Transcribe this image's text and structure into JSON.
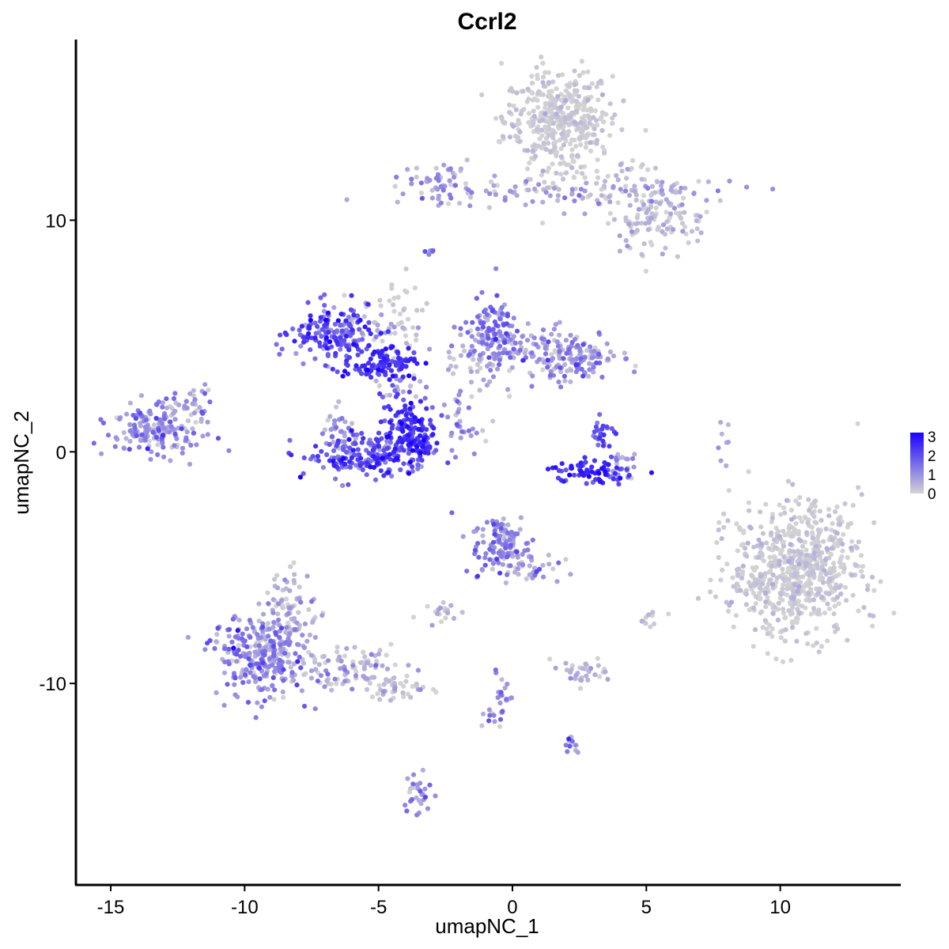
{
  "chart_data": {
    "type": "scatter",
    "title": "Ccrl2",
    "xlabel": "umapNC_1",
    "ylabel": "umapNC_2",
    "xlim": [
      -16.3,
      14.5
    ],
    "ylim": [
      -18.7,
      17.8
    ],
    "xticks": [
      -15,
      -10,
      -5,
      0,
      5,
      10
    ],
    "yticks": [
      -10,
      0,
      10
    ],
    "xtick_labels": [
      "-15",
      "-10",
      "-5",
      "0",
      "5",
      "10"
    ],
    "ytick_labels": [
      "-10",
      "0",
      "10"
    ],
    "color_scale": {
      "low_color": "#d3d3d3",
      "high_color": "#1a00ff",
      "min": 0,
      "max": 3.2,
      "legend_ticks": [
        "0",
        "1",
        "2",
        "3"
      ],
      "legend_placement": "right"
    },
    "grid": false,
    "clusters": [
      {
        "cx": 1.7,
        "cy": 14.3,
        "sx": 1.0,
        "sy": 1.1,
        "n": 420,
        "expr": 0.05,
        "expr_sd": 0.2
      },
      {
        "cx": 2.0,
        "cy": 11.3,
        "sx": 3.3,
        "sy": 0.35,
        "n": 110,
        "expr": 0.5,
        "expr_sd": 0.45
      },
      {
        "cx": -2.7,
        "cy": 11.6,
        "sx": 0.55,
        "sy": 0.45,
        "n": 45,
        "expr": 0.8,
        "expr_sd": 0.5
      },
      {
        "cx": 5.4,
        "cy": 10.0,
        "sx": 0.9,
        "sy": 0.7,
        "n": 110,
        "expr": 0.2,
        "expr_sd": 0.35
      },
      {
        "cx": 4.9,
        "cy": 11.5,
        "sx": 0.9,
        "sy": 0.6,
        "n": 40,
        "expr": 0.25,
        "expr_sd": 0.35
      },
      {
        "cx": -3.0,
        "cy": 8.5,
        "sx": 0.15,
        "sy": 0.15,
        "n": 5,
        "expr": 1.2,
        "expr_sd": 0.4
      },
      {
        "cx": -6.7,
        "cy": 5.0,
        "sx": 0.8,
        "sy": 0.6,
        "n": 160,
        "expr": 1.9,
        "expr_sd": 0.6
      },
      {
        "cx": -4.8,
        "cy": 3.8,
        "sx": 0.6,
        "sy": 0.35,
        "n": 110,
        "expr": 2.4,
        "expr_sd": 0.4
      },
      {
        "cx": -5.6,
        "cy": 5.5,
        "sx": 1.2,
        "sy": 0.45,
        "n": 50,
        "expr": 0.3,
        "expr_sd": 0.45
      },
      {
        "cx": -4.2,
        "cy": 6.2,
        "sx": 0.4,
        "sy": 1.0,
        "n": 25,
        "expr": 0.05,
        "expr_sd": 0.15
      },
      {
        "cx": -3.8,
        "cy": 0.9,
        "sx": 0.55,
        "sy": 0.75,
        "n": 150,
        "expr": 2.4,
        "expr_sd": 0.45
      },
      {
        "cx": -5.4,
        "cy": -0.2,
        "sx": 1.2,
        "sy": 0.45,
        "n": 190,
        "expr": 1.9,
        "expr_sd": 0.6
      },
      {
        "cx": -6.4,
        "cy": 0.9,
        "sx": 0.3,
        "sy": 0.45,
        "n": 35,
        "expr": 0.6,
        "expr_sd": 0.5
      },
      {
        "cx": -4.2,
        "cy": 2.6,
        "sx": 0.3,
        "sy": 0.6,
        "n": 20,
        "expr": 0.4,
        "expr_sd": 0.5
      },
      {
        "cx": -0.8,
        "cy": 5.4,
        "sx": 0.5,
        "sy": 0.7,
        "n": 90,
        "expr": 1.2,
        "expr_sd": 0.6
      },
      {
        "cx": 1.2,
        "cy": 4.3,
        "sx": 1.4,
        "sy": 0.5,
        "n": 170,
        "expr": 0.8,
        "expr_sd": 0.55
      },
      {
        "cx": 2.3,
        "cy": 4.0,
        "sx": 0.6,
        "sy": 0.5,
        "n": 60,
        "expr": 1.0,
        "expr_sd": 0.55
      },
      {
        "cx": -1.5,
        "cy": 3.5,
        "sx": 0.6,
        "sy": 0.8,
        "n": 40,
        "expr": 0.5,
        "expr_sd": 0.5
      },
      {
        "cx": -2.1,
        "cy": 1.8,
        "sx": 0.3,
        "sy": 0.6,
        "n": 12,
        "expr": 0.9,
        "expr_sd": 0.5
      },
      {
        "cx": -1.6,
        "cy": 1.0,
        "sx": 0.5,
        "sy": 0.4,
        "n": 15,
        "expr": 0.9,
        "expr_sd": 0.5
      },
      {
        "cx": 3.0,
        "cy": -0.9,
        "sx": 0.85,
        "sy": 0.25,
        "n": 70,
        "expr": 2.5,
        "expr_sd": 0.45
      },
      {
        "cx": 3.3,
        "cy": 0.6,
        "sx": 0.25,
        "sy": 0.45,
        "n": 25,
        "expr": 1.9,
        "expr_sd": 0.5
      },
      {
        "cx": 4.2,
        "cy": -0.5,
        "sx": 0.3,
        "sy": 0.35,
        "n": 20,
        "expr": 0.6,
        "expr_sd": 0.5
      },
      {
        "cx": 7.9,
        "cy": 0.2,
        "sx": 0.12,
        "sy": 0.5,
        "n": 8,
        "expr": 0.5,
        "expr_sd": 0.4
      },
      {
        "cx": -13.3,
        "cy": 1.0,
        "sx": 0.85,
        "sy": 0.55,
        "n": 180,
        "expr": 0.9,
        "expr_sd": 0.6
      },
      {
        "cx": -12.0,
        "cy": 1.9,
        "sx": 0.35,
        "sy": 0.6,
        "n": 25,
        "expr": 0.6,
        "expr_sd": 0.5
      },
      {
        "cx": 10.6,
        "cy": -5.0,
        "sx": 1.2,
        "sy": 1.45,
        "n": 650,
        "expr": 0.06,
        "expr_sd": 0.22
      },
      {
        "cx": 8.6,
        "cy": -5.8,
        "sx": 0.5,
        "sy": 0.35,
        "n": 20,
        "expr": 0.05,
        "expr_sd": 0.15
      },
      {
        "cx": -0.4,
        "cy": -4.0,
        "sx": 0.55,
        "sy": 0.65,
        "n": 120,
        "expr": 1.1,
        "expr_sd": 0.6
      },
      {
        "cx": 0.8,
        "cy": -5.0,
        "sx": 0.5,
        "sy": 0.35,
        "n": 35,
        "expr": 0.8,
        "expr_sd": 0.55
      },
      {
        "cx": -9.4,
        "cy": -8.8,
        "sx": 0.9,
        "sy": 0.9,
        "n": 300,
        "expr": 0.9,
        "expr_sd": 0.6
      },
      {
        "cx": -8.2,
        "cy": -6.7,
        "sx": 0.5,
        "sy": 0.8,
        "n": 80,
        "expr": 0.4,
        "expr_sd": 0.45
      },
      {
        "cx": -6.0,
        "cy": -9.4,
        "sx": 1.0,
        "sy": 0.45,
        "n": 90,
        "expr": 0.4,
        "expr_sd": 0.5
      },
      {
        "cx": -4.4,
        "cy": -10.2,
        "sx": 0.6,
        "sy": 0.3,
        "n": 40,
        "expr": 0.3,
        "expr_sd": 0.4
      },
      {
        "cx": -2.6,
        "cy": -6.9,
        "sx": 0.35,
        "sy": 0.25,
        "n": 20,
        "expr": 0.3,
        "expr_sd": 0.4
      },
      {
        "cx": 2.5,
        "cy": -9.5,
        "sx": 0.55,
        "sy": 0.25,
        "n": 35,
        "expr": 0.25,
        "expr_sd": 0.35
      },
      {
        "cx": -0.5,
        "cy": -10.8,
        "sx": 0.25,
        "sy": 0.8,
        "n": 30,
        "expr": 1.1,
        "expr_sd": 0.55
      },
      {
        "cx": 2.3,
        "cy": -12.6,
        "sx": 0.15,
        "sy": 0.25,
        "n": 12,
        "expr": 1.2,
        "expr_sd": 0.5
      },
      {
        "cx": -3.5,
        "cy": -14.7,
        "sx": 0.25,
        "sy": 0.6,
        "n": 30,
        "expr": 0.8,
        "expr_sd": 0.5
      },
      {
        "cx": 5.0,
        "cy": -7.3,
        "sx": 0.25,
        "sy": 0.25,
        "n": 10,
        "expr": 0.2,
        "expr_sd": 0.3
      }
    ]
  }
}
